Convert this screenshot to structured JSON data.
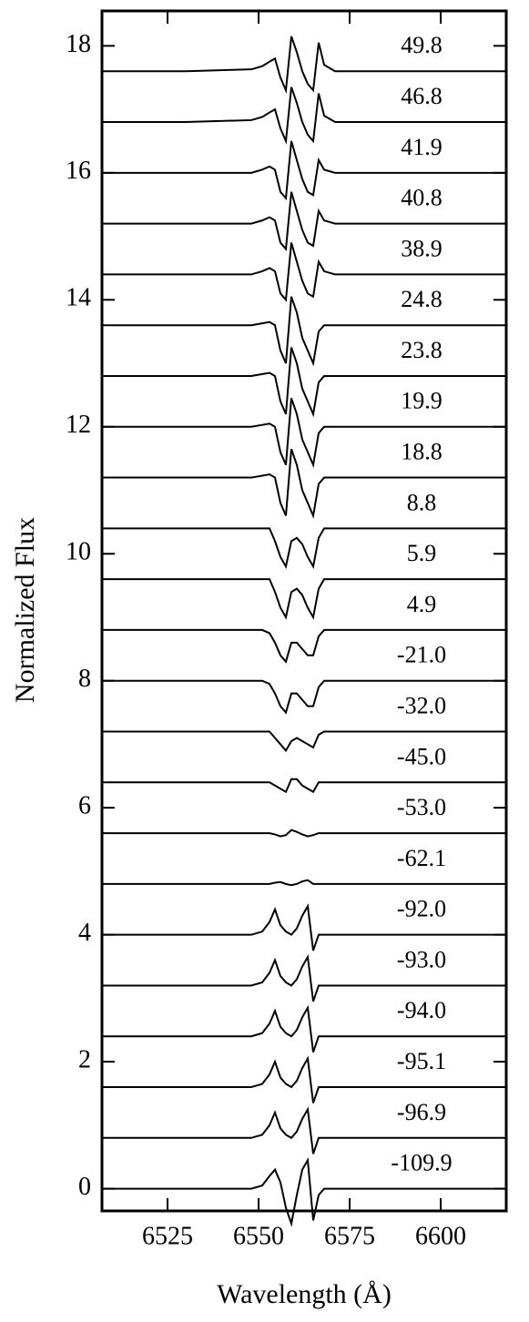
{
  "chart_data": {
    "type": "line",
    "x_label": "Wavelength (Å)",
    "y_label": "Normalized Flux",
    "color": "#000000",
    "grid": false,
    "xlim": [
      6507,
      6618
    ],
    "ylim": [
      -0.35,
      18.55
    ],
    "xticks": [
      6525,
      6550,
      6575,
      6600
    ],
    "yticks": [
      0,
      2,
      4,
      6,
      8,
      10,
      12,
      14,
      16,
      18
    ],
    "x": [
      6507,
      6530,
      6548,
      6551,
      6553,
      6554.5,
      6556,
      6557.5,
      6559,
      6560.5,
      6562,
      6563.5,
      6565,
      6566.5,
      6568,
      6571,
      6590,
      6618
    ],
    "series": [
      {
        "name": "49.8",
        "values": [
          17.6,
          17.6,
          17.63,
          17.68,
          17.75,
          17.8,
          17.5,
          17.3,
          18.15,
          17.9,
          17.6,
          17.4,
          17.3,
          18.05,
          17.7,
          17.6,
          17.6,
          17.6
        ]
      },
      {
        "name": "46.8",
        "values": [
          16.8,
          16.8,
          16.83,
          16.88,
          16.95,
          17.0,
          16.7,
          16.5,
          17.35,
          17.1,
          16.8,
          16.6,
          16.5,
          17.25,
          16.9,
          16.8,
          16.8,
          16.8
        ]
      },
      {
        "name": "41.9",
        "values": [
          16,
          16,
          16,
          16.05,
          16.1,
          16.05,
          15.7,
          15.6,
          16.5,
          16.2,
          15.9,
          15.7,
          15.65,
          16.2,
          16.05,
          16,
          16,
          16
        ]
      },
      {
        "name": "40.8",
        "values": [
          15.2,
          15.2,
          15.2,
          15.25,
          15.3,
          15.25,
          14.9,
          14.8,
          15.7,
          15.4,
          15.1,
          14.9,
          14.85,
          15.4,
          15.25,
          15.2,
          15.2,
          15.2
        ]
      },
      {
        "name": "38.9",
        "values": [
          14.4,
          14.4,
          14.4,
          14.45,
          14.5,
          14.45,
          14.1,
          14.0,
          14.9,
          14.6,
          14.3,
          14.1,
          14.05,
          14.6,
          14.45,
          14.4,
          14.4,
          14.4
        ]
      },
      {
        "name": "24.8",
        "values": [
          13.6,
          13.6,
          13.6,
          13.63,
          13.65,
          13.6,
          13.2,
          13.0,
          14.05,
          13.8,
          13.4,
          13.2,
          13.0,
          13.5,
          13.6,
          13.6,
          13.6,
          13.6
        ]
      },
      {
        "name": "23.8",
        "values": [
          12.8,
          12.8,
          12.8,
          12.83,
          12.85,
          12.8,
          12.4,
          12.2,
          13.25,
          13.0,
          12.6,
          12.4,
          12.2,
          12.7,
          12.8,
          12.8,
          12.8,
          12.8
        ]
      },
      {
        "name": "19.9",
        "values": [
          12,
          12,
          12,
          12.03,
          12.05,
          12,
          11.6,
          11.4,
          12.45,
          12.2,
          11.8,
          11.6,
          11.4,
          11.9,
          12,
          12,
          12,
          12
        ]
      },
      {
        "name": "18.8",
        "values": [
          11.2,
          11.2,
          11.2,
          11.23,
          11.25,
          11.2,
          10.8,
          10.6,
          11.65,
          11.4,
          11.0,
          10.8,
          10.6,
          11.1,
          11.2,
          11.2,
          11.2,
          11.2
        ]
      },
      {
        "name": "8.8",
        "values": [
          10.4,
          10.4,
          10.4,
          10.4,
          10.4,
          10.2,
          9.95,
          9.8,
          10.2,
          10.25,
          10.15,
          9.95,
          9.8,
          10.25,
          10.4,
          10.4,
          10.4,
          10.4
        ]
      },
      {
        "name": "5.9",
        "values": [
          9.6,
          9.6,
          9.6,
          9.6,
          9.6,
          9.4,
          9.15,
          9.0,
          9.4,
          9.45,
          9.35,
          9.15,
          9.0,
          9.45,
          9.6,
          9.6,
          9.6,
          9.6
        ]
      },
      {
        "name": "4.9",
        "values": [
          8.8,
          8.8,
          8.8,
          8.8,
          8.75,
          8.6,
          8.4,
          8.3,
          8.6,
          8.6,
          8.5,
          8.4,
          8.4,
          8.7,
          8.8,
          8.8,
          8.8,
          8.8
        ]
      },
      {
        "name": "-21.0",
        "values": [
          8,
          8,
          8,
          8,
          7.95,
          7.8,
          7.6,
          7.5,
          7.8,
          7.8,
          7.7,
          7.6,
          7.6,
          7.9,
          8,
          8,
          8,
          8
        ]
      },
      {
        "name": "-32.0",
        "values": [
          7.2,
          7.2,
          7.2,
          7.2,
          7.2,
          7.1,
          7.0,
          6.9,
          7.05,
          7.1,
          7.05,
          7.0,
          6.95,
          7.15,
          7.2,
          7.2,
          7.2,
          7.2
        ]
      },
      {
        "name": "-45.0",
        "values": [
          6.4,
          6.4,
          6.4,
          6.4,
          6.4,
          6.35,
          6.3,
          6.25,
          6.45,
          6.45,
          6.35,
          6.3,
          6.25,
          6.4,
          6.4,
          6.4,
          6.4,
          6.4
        ]
      },
      {
        "name": "-53.0",
        "values": [
          5.6,
          5.6,
          5.6,
          5.6,
          5.6,
          5.58,
          5.55,
          5.57,
          5.65,
          5.62,
          5.58,
          5.55,
          5.57,
          5.6,
          5.6,
          5.6,
          5.6,
          5.6
        ]
      },
      {
        "name": "-62.1",
        "values": [
          4.8,
          4.8,
          4.8,
          4.8,
          4.8,
          4.82,
          4.83,
          4.8,
          4.78,
          4.8,
          4.84,
          4.86,
          4.8,
          4.8,
          4.8,
          4.8,
          4.8,
          4.8
        ]
      },
      {
        "name": "-92.0",
        "values": [
          4,
          4,
          4,
          4.05,
          4.2,
          4.4,
          4.15,
          4.05,
          4,
          4.1,
          4.3,
          4.45,
          3.75,
          4,
          4,
          4,
          4,
          4
        ]
      },
      {
        "name": "-93.0",
        "values": [
          3.2,
          3.2,
          3.2,
          3.25,
          3.4,
          3.6,
          3.35,
          3.25,
          3.2,
          3.3,
          3.5,
          3.65,
          2.95,
          3.2,
          3.2,
          3.2,
          3.2,
          3.2
        ]
      },
      {
        "name": "-94.0",
        "values": [
          2.4,
          2.4,
          2.4,
          2.45,
          2.6,
          2.8,
          2.55,
          2.45,
          2.4,
          2.5,
          2.7,
          2.85,
          2.15,
          2.4,
          2.4,
          2.4,
          2.4,
          2.4
        ]
      },
      {
        "name": "-95.1",
        "values": [
          1.6,
          1.6,
          1.6,
          1.65,
          1.8,
          2.0,
          1.75,
          1.65,
          1.6,
          1.7,
          1.9,
          2.05,
          1.35,
          1.6,
          1.6,
          1.6,
          1.6,
          1.6
        ]
      },
      {
        "name": "-96.9",
        "values": [
          0.8,
          0.8,
          0.8,
          0.85,
          1.0,
          1.2,
          0.95,
          0.85,
          0.8,
          0.9,
          1.1,
          1.25,
          0.55,
          0.8,
          0.8,
          0.8,
          0.8,
          0.8
        ]
      },
      {
        "name": "-109.9",
        "values": [
          0,
          0,
          0,
          0.05,
          0.2,
          0.3,
          0.1,
          -0.3,
          -0.55,
          -0.1,
          0.3,
          0.45,
          -0.5,
          -0.1,
          0,
          0,
          0,
          0
        ]
      }
    ]
  }
}
